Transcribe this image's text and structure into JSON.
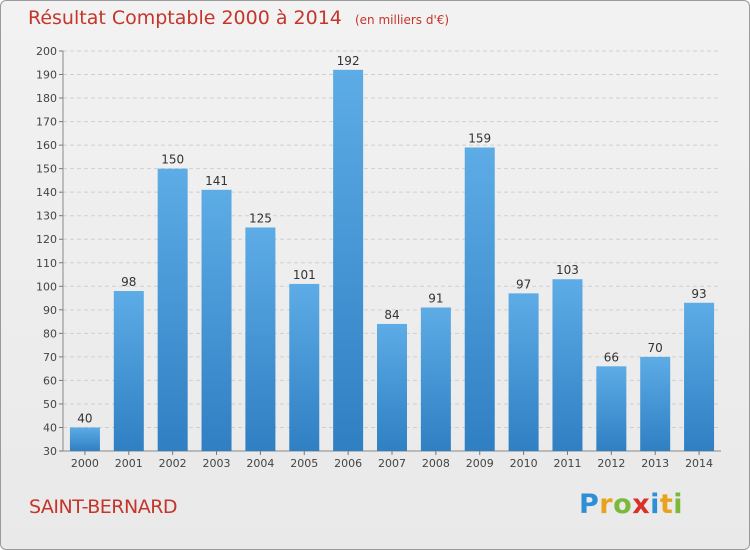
{
  "header": {
    "title": "Résultat Comptable 2000 à 2014",
    "subtitle": "(en milliers d'€)"
  },
  "footer": {
    "commune": "SAINT-BERNARD",
    "logo_letters": [
      "P",
      "r",
      "o",
      "x",
      "i",
      "t",
      "i"
    ],
    "logo_colors": [
      "#2f8fd6",
      "#e8a21c",
      "#7cb83a",
      "#d8312a",
      "#2f8fd6",
      "#e8a21c",
      "#7cb83a"
    ]
  },
  "chart_data": {
    "type": "bar",
    "title": "Résultat Comptable 2000 à 2014",
    "subtitle": "(en milliers d'€)",
    "xlabel": "",
    "ylabel": "",
    "categories": [
      "2000",
      "2001",
      "2002",
      "2003",
      "2004",
      "2005",
      "2006",
      "2007",
      "2008",
      "2009",
      "2010",
      "2011",
      "2012",
      "2013",
      "2014"
    ],
    "values": [
      40,
      98,
      150,
      141,
      125,
      101,
      192,
      84,
      91,
      159,
      97,
      103,
      66,
      70,
      93
    ],
    "ylim": [
      30,
      200
    ],
    "yticks": [
      30,
      40,
      50,
      60,
      70,
      80,
      90,
      100,
      110,
      120,
      130,
      140,
      150,
      160,
      170,
      180,
      190,
      200
    ],
    "grid": true,
    "bar_color_top": "#5dace6",
    "bar_color_bottom": "#2f7fc3"
  }
}
